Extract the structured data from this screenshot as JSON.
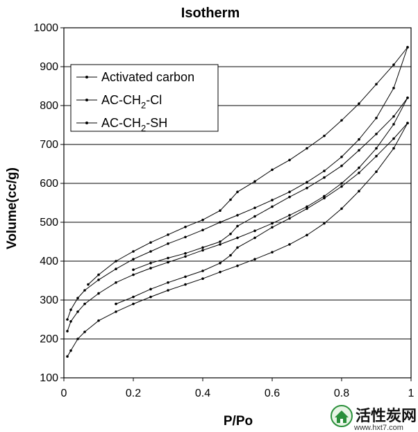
{
  "chart_data": {
    "type": "line",
    "title": "Isotherm",
    "xlabel": "P/Po",
    "ylabel": "Volume(cc/g)",
    "xlim": [
      0,
      1
    ],
    "ylim": [
      100,
      1000
    ],
    "x_ticks": [
      "0",
      "0.2",
      "0.4",
      "0.6",
      "0.8",
      "1"
    ],
    "y_ticks": [
      "100",
      "200",
      "300",
      "400",
      "500",
      "600",
      "700",
      "800",
      "900",
      "1000"
    ],
    "grid": "horizontal",
    "legend_position": "top-left",
    "series": [
      {
        "name": "Activated carbon",
        "adsorption": [
          [
            0.01,
            250
          ],
          [
            0.02,
            275
          ],
          [
            0.04,
            305
          ],
          [
            0.06,
            325
          ],
          [
            0.1,
            352
          ],
          [
            0.15,
            380
          ],
          [
            0.2,
            405
          ],
          [
            0.25,
            425
          ],
          [
            0.3,
            445
          ],
          [
            0.35,
            462
          ],
          [
            0.4,
            480
          ],
          [
            0.45,
            500
          ],
          [
            0.5,
            518
          ],
          [
            0.55,
            537
          ],
          [
            0.6,
            557
          ],
          [
            0.65,
            578
          ],
          [
            0.7,
            603
          ],
          [
            0.75,
            632
          ],
          [
            0.8,
            668
          ],
          [
            0.85,
            713
          ],
          [
            0.9,
            768
          ],
          [
            0.95,
            845
          ],
          [
            0.99,
            950
          ]
        ],
        "desorption": [
          [
            0.99,
            950
          ],
          [
            0.95,
            905
          ],
          [
            0.9,
            855
          ],
          [
            0.85,
            805
          ],
          [
            0.8,
            762
          ],
          [
            0.75,
            722
          ],
          [
            0.7,
            690
          ],
          [
            0.65,
            660
          ],
          [
            0.6,
            635
          ],
          [
            0.55,
            605
          ],
          [
            0.5,
            578
          ],
          [
            0.48,
            558
          ],
          [
            0.45,
            530
          ],
          [
            0.4,
            506
          ],
          [
            0.35,
            488
          ],
          [
            0.3,
            468
          ],
          [
            0.25,
            448
          ],
          [
            0.2,
            425
          ],
          [
            0.15,
            400
          ],
          [
            0.1,
            365
          ],
          [
            0.07,
            340
          ]
        ]
      },
      {
        "name": "AC-CH2-Cl",
        "adsorption": [
          [
            0.01,
            220
          ],
          [
            0.02,
            245
          ],
          [
            0.04,
            270
          ],
          [
            0.06,
            290
          ],
          [
            0.1,
            317
          ],
          [
            0.15,
            345
          ],
          [
            0.2,
            365
          ],
          [
            0.25,
            382
          ],
          [
            0.3,
            397
          ],
          [
            0.35,
            412
          ],
          [
            0.4,
            428
          ],
          [
            0.45,
            443
          ],
          [
            0.5,
            460
          ],
          [
            0.55,
            478
          ],
          [
            0.6,
            497
          ],
          [
            0.65,
            518
          ],
          [
            0.7,
            540
          ],
          [
            0.75,
            567
          ],
          [
            0.8,
            600
          ],
          [
            0.85,
            640
          ],
          [
            0.9,
            690
          ],
          [
            0.95,
            752
          ],
          [
            0.99,
            820
          ]
        ],
        "desorption": [
          [
            0.99,
            820
          ],
          [
            0.95,
            772
          ],
          [
            0.9,
            727
          ],
          [
            0.85,
            685
          ],
          [
            0.8,
            645
          ],
          [
            0.75,
            615
          ],
          [
            0.7,
            588
          ],
          [
            0.65,
            565
          ],
          [
            0.6,
            540
          ],
          [
            0.55,
            515
          ],
          [
            0.5,
            490
          ],
          [
            0.48,
            470
          ],
          [
            0.45,
            450
          ],
          [
            0.4,
            435
          ],
          [
            0.35,
            420
          ],
          [
            0.3,
            408
          ],
          [
            0.25,
            395
          ],
          [
            0.2,
            378
          ]
        ]
      },
      {
        "name": "AC-CH2-SH",
        "adsorption": [
          [
            0.01,
            155
          ],
          [
            0.02,
            170
          ],
          [
            0.04,
            200
          ],
          [
            0.06,
            218
          ],
          [
            0.1,
            247
          ],
          [
            0.15,
            270
          ],
          [
            0.2,
            290
          ],
          [
            0.25,
            308
          ],
          [
            0.3,
            325
          ],
          [
            0.35,
            340
          ],
          [
            0.4,
            355
          ],
          [
            0.45,
            372
          ],
          [
            0.5,
            388
          ],
          [
            0.55,
            405
          ],
          [
            0.6,
            423
          ],
          [
            0.65,
            443
          ],
          [
            0.7,
            467
          ],
          [
            0.75,
            497
          ],
          [
            0.8,
            535
          ],
          [
            0.85,
            580
          ],
          [
            0.9,
            630
          ],
          [
            0.95,
            690
          ],
          [
            0.99,
            755
          ]
        ],
        "desorption": [
          [
            0.99,
            755
          ],
          [
            0.95,
            715
          ],
          [
            0.9,
            670
          ],
          [
            0.85,
            627
          ],
          [
            0.8,
            592
          ],
          [
            0.75,
            562
          ],
          [
            0.7,
            535
          ],
          [
            0.65,
            510
          ],
          [
            0.6,
            487
          ],
          [
            0.55,
            460
          ],
          [
            0.5,
            435
          ],
          [
            0.48,
            415
          ],
          [
            0.45,
            395
          ],
          [
            0.4,
            375
          ],
          [
            0.35,
            360
          ],
          [
            0.3,
            345
          ],
          [
            0.25,
            328
          ],
          [
            0.2,
            308
          ],
          [
            0.15,
            290
          ]
        ]
      }
    ]
  },
  "legend": {
    "items": [
      {
        "base": "Activated carbon",
        "parts": []
      },
      {
        "base": "AC-CH",
        "parts": [
          {
            "text": "2",
            "sub": true
          },
          {
            "text": "-Cl",
            "sub": false
          }
        ]
      },
      {
        "base": "AC-CH",
        "parts": [
          {
            "text": "2",
            "sub": true
          },
          {
            "text": "-SH",
            "sub": false
          }
        ]
      }
    ]
  },
  "watermark": {
    "chinese": "活性炭网",
    "url": "www.hxt7.com",
    "logo_icon": "green-house-logo-icon",
    "accent_color": "#2a8f3a"
  }
}
